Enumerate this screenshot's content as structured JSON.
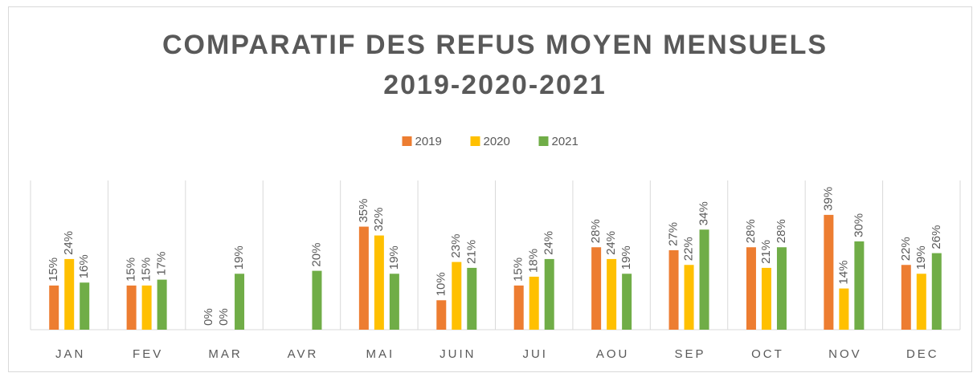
{
  "chart_data": {
    "type": "bar",
    "title": [
      "COMPARATIF DES REFUS MOYEN MENSUELS",
      "2019-2020-2021"
    ],
    "categories": [
      "JAN",
      "FEV",
      "MAR",
      "AVR",
      "MAI",
      "JUIN",
      "JUI",
      "AOU",
      "SEP",
      "OCT",
      "NOV",
      "DEC"
    ],
    "series": [
      {
        "name": "2019",
        "color": "#ed7d31",
        "values": [
          15,
          15,
          0,
          null,
          35,
          10,
          15,
          28,
          27,
          28,
          39,
          22
        ],
        "value_labels": [
          "15%",
          "15%",
          "0%",
          null,
          "35%",
          "10%",
          "15%",
          "28%",
          "27%",
          "28%",
          "39%",
          "22%"
        ]
      },
      {
        "name": "2020",
        "color": "#ffc000",
        "values": [
          24,
          15,
          0,
          null,
          32,
          23,
          18,
          24,
          22,
          21,
          14,
          19
        ],
        "value_labels": [
          "24%",
          "15%",
          "0%",
          null,
          "32%",
          "23%",
          "18%",
          "24%",
          "22%",
          "21%",
          "14%",
          "19%"
        ]
      },
      {
        "name": "2021",
        "color": "#70ad47",
        "values": [
          16,
          17,
          19,
          20,
          19,
          21,
          24,
          19,
          34,
          28,
          30,
          26
        ],
        "value_labels": [
          "16%",
          "17%",
          "19%",
          "20%",
          "19%",
          "21%",
          "24%",
          "19%",
          "34%",
          "28%",
          "30%",
          "26%"
        ]
      }
    ],
    "legend": "top"
  }
}
